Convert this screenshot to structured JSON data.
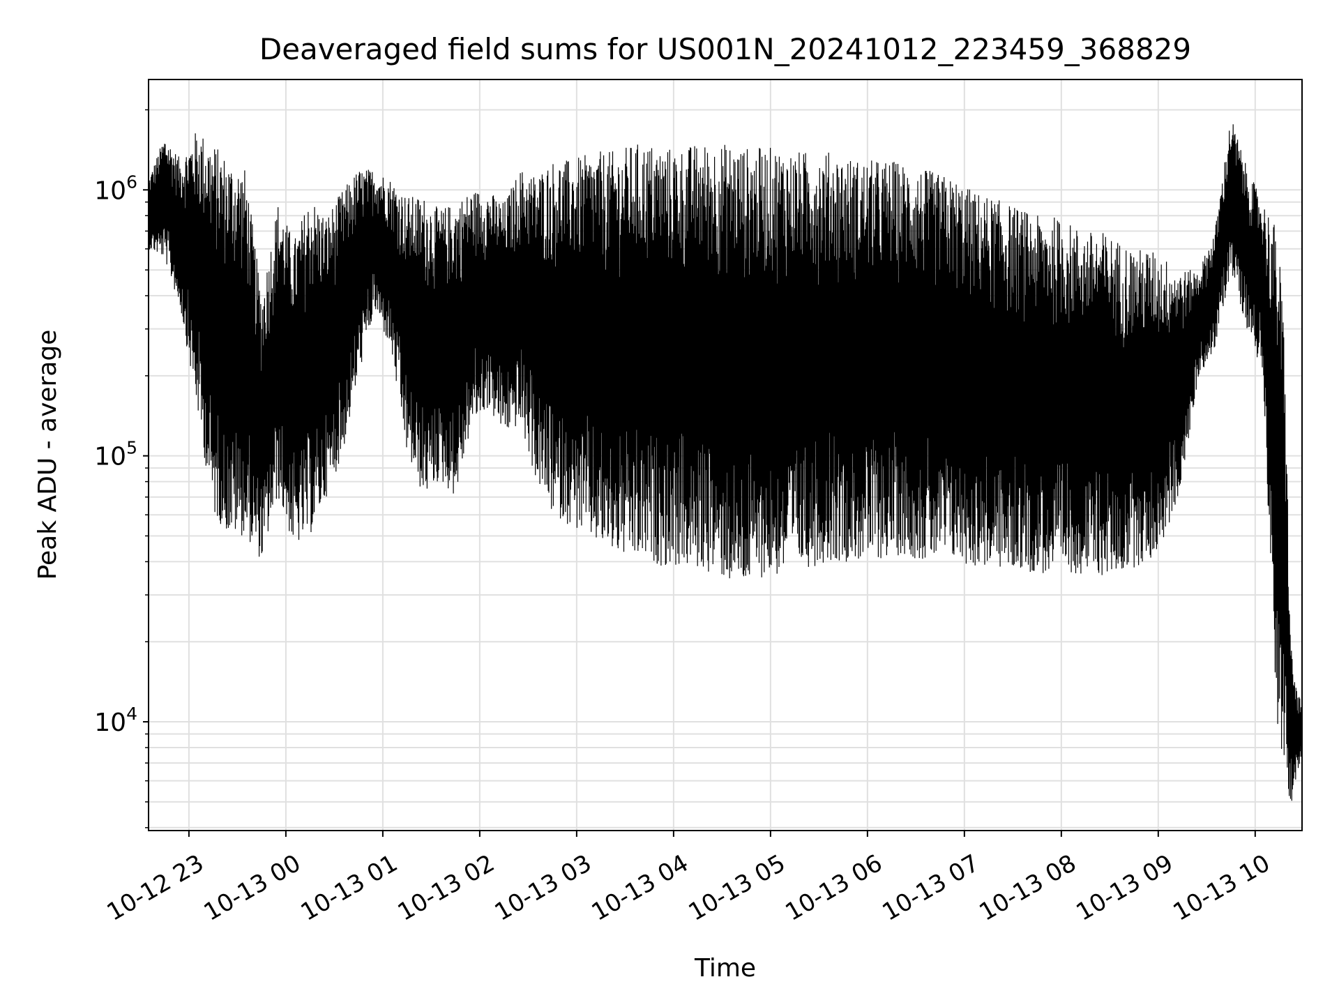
{
  "chart_data": {
    "type": "line",
    "title": "Deaveraged field sums for US001N_20241012_223459_368829",
    "xlabel": "Time",
    "ylabel": "Peak ADU - average",
    "y_scale": "log",
    "ylim": [
      3900,
      2600000
    ],
    "xlim": [
      "2024-10-12 22:35",
      "2024-10-13 10:29"
    ],
    "grid": true,
    "line_color": "#000000",
    "grid_color": "#e0e0e0",
    "x_ticks": [
      {
        "value": "2024-10-12 23:00",
        "label": "10-12 23"
      },
      {
        "value": "2024-10-13 00:00",
        "label": "10-13 00"
      },
      {
        "value": "2024-10-13 01:00",
        "label": "10-13 01"
      },
      {
        "value": "2024-10-13 02:00",
        "label": "10-13 02"
      },
      {
        "value": "2024-10-13 03:00",
        "label": "10-13 03"
      },
      {
        "value": "2024-10-13 04:00",
        "label": "10-13 04"
      },
      {
        "value": "2024-10-13 05:00",
        "label": "10-13 05"
      },
      {
        "value": "2024-10-13 06:00",
        "label": "10-13 06"
      },
      {
        "value": "2024-10-13 07:00",
        "label": "10-13 07"
      },
      {
        "value": "2024-10-13 08:00",
        "label": "10-13 08"
      },
      {
        "value": "2024-10-13 09:00",
        "label": "10-13 09"
      },
      {
        "value": "2024-10-13 10:00",
        "label": "10-13 10"
      }
    ],
    "y_major_ticks": [
      {
        "value": 10000,
        "base": "10",
        "exp": "4"
      },
      {
        "value": 100000,
        "base": "10",
        "exp": "5"
      },
      {
        "value": 1000000,
        "base": "10",
        "exp": "6"
      }
    ],
    "envelope": {
      "description_units": "time (YYYY-MM-DD HH:MM) vs Peak ADU - average (approx. upper and lower extent of the dense trace)",
      "x": [
        "2024-10-12 22:35",
        "2024-10-12 22:45",
        "2024-10-12 22:55",
        "2024-10-12 23:05",
        "2024-10-12 23:15",
        "2024-10-12 23:25",
        "2024-10-12 23:35",
        "2024-10-12 23:45",
        "2024-10-12 23:55",
        "2024-10-13 00:05",
        "2024-10-13 00:15",
        "2024-10-13 00:25",
        "2024-10-13 00:35",
        "2024-10-13 00:45",
        "2024-10-13 00:55",
        "2024-10-13 01:05",
        "2024-10-13 01:15",
        "2024-10-13 01:25",
        "2024-10-13 01:35",
        "2024-10-13 01:45",
        "2024-10-13 01:55",
        "2024-10-13 02:05",
        "2024-10-13 02:15",
        "2024-10-13 02:25",
        "2024-10-13 02:35",
        "2024-10-13 02:45",
        "2024-10-13 02:55",
        "2024-10-13 03:05",
        "2024-10-13 03:15",
        "2024-10-13 03:25",
        "2024-10-13 03:35",
        "2024-10-13 03:45",
        "2024-10-13 03:55",
        "2024-10-13 04:05",
        "2024-10-13 04:15",
        "2024-10-13 04:25",
        "2024-10-13 04:35",
        "2024-10-13 04:45",
        "2024-10-13 04:55",
        "2024-10-13 05:05",
        "2024-10-13 05:15",
        "2024-10-13 05:25",
        "2024-10-13 05:35",
        "2024-10-13 05:45",
        "2024-10-13 05:55",
        "2024-10-13 06:05",
        "2024-10-13 06:15",
        "2024-10-13 06:25",
        "2024-10-13 06:35",
        "2024-10-13 06:45",
        "2024-10-13 06:55",
        "2024-10-13 07:05",
        "2024-10-13 07:15",
        "2024-10-13 07:25",
        "2024-10-13 07:35",
        "2024-10-13 07:45",
        "2024-10-13 07:55",
        "2024-10-13 08:05",
        "2024-10-13 08:15",
        "2024-10-13 08:25",
        "2024-10-13 08:35",
        "2024-10-13 08:45",
        "2024-10-13 08:55",
        "2024-10-13 09:05",
        "2024-10-13 09:15",
        "2024-10-13 09:25",
        "2024-10-13 09:35",
        "2024-10-13 09:45",
        "2024-10-13 09:55",
        "2024-10-13 10:05",
        "2024-10-13 10:10",
        "2024-10-13 10:14",
        "2024-10-13 10:18",
        "2024-10-13 10:22",
        "2024-10-13 10:25",
        "2024-10-13 10:28"
      ],
      "high": [
        1100000,
        1600000,
        1300000,
        1700000,
        1500000,
        1300000,
        1200000,
        400000,
        900000,
        650000,
        950000,
        800000,
        1000000,
        1200000,
        1200000,
        1100000,
        950000,
        950000,
        850000,
        900000,
        1000000,
        1000000,
        900000,
        1200000,
        1150000,
        1300000,
        1300000,
        1350000,
        1400000,
        1400000,
        1500000,
        1500000,
        1450000,
        1450000,
        1500000,
        1500000,
        1500000,
        1450000,
        1450000,
        1450000,
        1400000,
        1400000,
        1400000,
        1350000,
        1300000,
        1300000,
        1300000,
        1250000,
        1200000,
        1150000,
        1100000,
        1000000,
        950000,
        900000,
        850000,
        800000,
        800000,
        750000,
        700000,
        700000,
        650000,
        600000,
        600000,
        550000,
        500000,
        500000,
        700000,
        1900000,
        1200000,
        900000,
        800000,
        700000,
        300000,
        20000,
        14000,
        12000
      ],
      "low": [
        600000,
        550000,
        350000,
        150000,
        60000,
        50000,
        50000,
        40000,
        70000,
        45000,
        50000,
        70000,
        100000,
        200000,
        350000,
        250000,
        100000,
        70000,
        80000,
        70000,
        130000,
        150000,
        120000,
        130000,
        80000,
        60000,
        55000,
        50000,
        45000,
        42000,
        40000,
        40000,
        38000,
        38000,
        37000,
        36000,
        33000,
        32000,
        35000,
        35000,
        38000,
        38000,
        40000,
        40000,
        40000,
        40000,
        42000,
        42000,
        40000,
        40000,
        40000,
        38000,
        38000,
        37000,
        37000,
        36000,
        35000,
        36000,
        36000,
        35000,
        36000,
        38000,
        40000,
        50000,
        80000,
        200000,
        250000,
        500000,
        300000,
        200000,
        30000,
        9000,
        6000,
        4800,
        6000,
        7000
      ]
    }
  }
}
